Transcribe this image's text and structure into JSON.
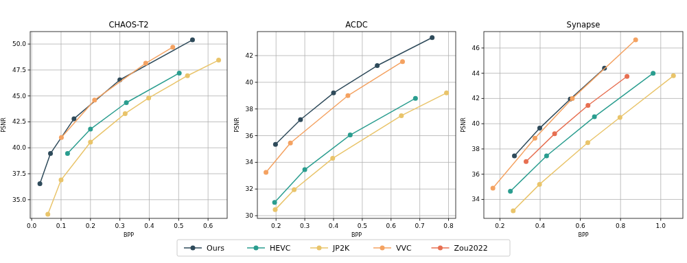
{
  "chart_data": [
    {
      "type": "line",
      "title": "CHAOS-T2",
      "xlabel": "BPP",
      "ylabel": "PSNR",
      "xlim": [
        -0.005,
        0.665
      ],
      "ylim": [
        33.2,
        51.2
      ],
      "xticks": [
        {
          "value": 0,
          "label": "0.0"
        },
        0.1,
        0.2,
        0.3,
        0.4,
        0.5,
        0.6
      ],
      "yticks": [
        {
          "value": 35,
          "label": "35.0"
        },
        37.5,
        {
          "value": 40,
          "label": "40.0"
        },
        42.5,
        {
          "value": 45,
          "label": "45.0"
        },
        47.5,
        {
          "value": 50,
          "label": "50.0"
        }
      ],
      "grid": true,
      "marker": "circle",
      "legend": "bottom",
      "series": [
        {
          "name": "Ours",
          "color": "#2e4a5a",
          "x": [
            0.028,
            0.064,
            0.144,
            0.3,
            0.547
          ],
          "values": [
            36.55,
            39.45,
            42.8,
            46.55,
            50.4
          ]
        },
        {
          "name": "HEVC",
          "color": "#2a9d8f",
          "x": [
            0.122,
            0.2,
            0.322,
            0.502
          ],
          "values": [
            39.45,
            41.8,
            44.35,
            47.2
          ]
        },
        {
          "name": "JP2K",
          "color": "#e9c46a",
          "x": [
            0.055,
            0.1,
            0.2,
            0.318,
            0.398,
            0.53,
            0.636
          ],
          "values": [
            33.6,
            36.9,
            40.55,
            43.3,
            44.8,
            46.95,
            48.45
          ]
        },
        {
          "name": "VVC",
          "color": "#f4a261",
          "x": [
            0.101,
            0.214,
            0.388,
            0.48
          ],
          "values": [
            41.0,
            44.6,
            48.15,
            49.7
          ]
        }
      ]
    },
    {
      "type": "line",
      "title": "ACDC",
      "xlabel": "BPP",
      "ylabel": "PSNR",
      "xlim": [
        0.135,
        0.825
      ],
      "ylim": [
        29.8,
        43.8
      ],
      "xticks": [
        0.2,
        0.3,
        0.4,
        0.5,
        0.6,
        0.7,
        0.8
      ],
      "yticks": [
        30,
        32,
        34,
        36,
        38,
        40,
        42
      ],
      "grid": true,
      "marker": "circle",
      "legend": "bottom",
      "series": [
        {
          "name": "Ours",
          "color": "#2e4a5a",
          "x": [
            0.198,
            0.285,
            0.4,
            0.552,
            0.743
          ],
          "values": [
            35.35,
            37.2,
            39.2,
            41.25,
            43.35
          ]
        },
        {
          "name": "HEVC",
          "color": "#2a9d8f",
          "x": [
            0.195,
            0.3,
            0.458,
            0.685
          ],
          "values": [
            31.0,
            33.45,
            36.05,
            38.8
          ]
        },
        {
          "name": "JP2K",
          "color": "#e9c46a",
          "x": [
            0.197,
            0.263,
            0.397,
            0.636,
            0.793
          ],
          "values": [
            30.45,
            31.95,
            34.3,
            37.5,
            39.2
          ]
        },
        {
          "name": "VVC",
          "color": "#f4a261",
          "x": [
            0.165,
            0.25,
            0.45,
            0.64
          ],
          "values": [
            33.25,
            35.45,
            39.0,
            41.55
          ]
        }
      ]
    },
    {
      "type": "line",
      "title": "Synapse",
      "xlabel": "BPP",
      "ylabel": "PSNR",
      "xlim": [
        0.12,
        1.11
      ],
      "ylim": [
        32.5,
        47.3
      ],
      "xticks": [
        0.2,
        0.4,
        0.6,
        0.8,
        {
          "value": 1,
          "label": "1.0"
        }
      ],
      "yticks": [
        34,
        36,
        38,
        40,
        42,
        44,
        46
      ],
      "grid": true,
      "marker": "circle",
      "legend": "bottom",
      "series": [
        {
          "name": "Ours",
          "color": "#2e4a5a",
          "x": [
            0.272,
            0.398,
            0.55,
            0.72
          ],
          "values": [
            37.45,
            39.65,
            41.95,
            44.4
          ]
        },
        {
          "name": "HEVC",
          "color": "#2a9d8f",
          "x": [
            0.252,
            0.432,
            0.67,
            0.962
          ],
          "values": [
            34.65,
            37.45,
            40.55,
            44.0
          ]
        },
        {
          "name": "JP2K",
          "color": "#e9c46a",
          "x": [
            0.266,
            0.397,
            0.637,
            0.797,
            1.063
          ],
          "values": [
            33.1,
            35.2,
            38.5,
            40.5,
            43.8
          ]
        },
        {
          "name": "VVC",
          "color": "#f4a261",
          "x": [
            0.165,
            0.374,
            0.56,
            0.875
          ],
          "values": [
            34.9,
            38.85,
            42.0,
            46.65
          ]
        },
        {
          "name": "Zou2022",
          "color": "#e76f51",
          "x": [
            0.33,
            0.472,
            0.638,
            0.832
          ],
          "values": [
            37.0,
            39.2,
            41.45,
            43.75
          ]
        }
      ]
    }
  ]
}
